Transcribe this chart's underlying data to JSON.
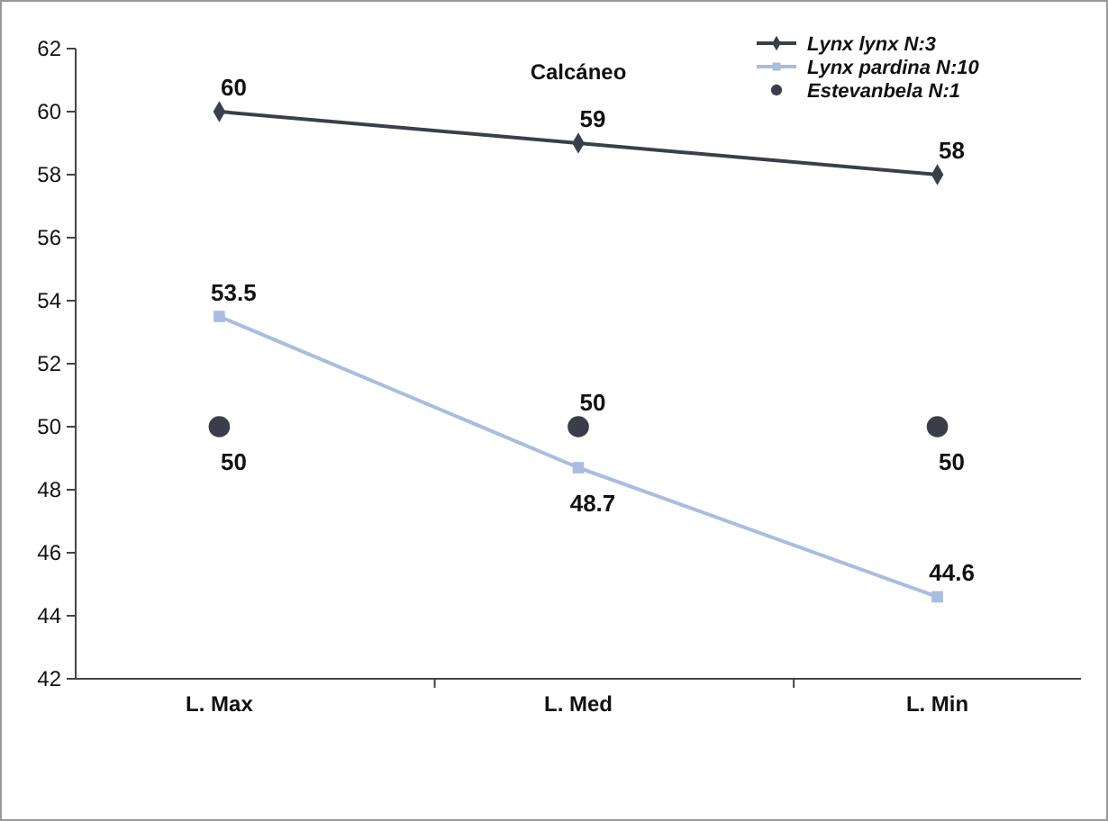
{
  "chart_data": {
    "type": "line",
    "title": "Calcáneo",
    "categories": [
      "L. Max",
      "L. Med",
      "L. Min"
    ],
    "series": [
      {
        "name": "Lynx lynx  N:3",
        "color": "#3a3f4a",
        "marker": "diamond",
        "values": [
          60,
          59,
          58
        ]
      },
      {
        "name": "Lynx pardina  N:10",
        "color": "#a9bde0",
        "marker": "square",
        "values": [
          53.5,
          48.7,
          44.6
        ]
      },
      {
        "name": "Estevanbela  N:1",
        "color": "#3b3e48",
        "type": "scatter",
        "marker": "circle",
        "values": [
          50,
          50,
          50
        ]
      }
    ],
    "ylim": [
      42,
      62
    ],
    "yticks": [
      42,
      44,
      46,
      48,
      50,
      52,
      54,
      56,
      58,
      60,
      62
    ],
    "grid": false,
    "legend": "top right",
    "data_labels": true
  }
}
